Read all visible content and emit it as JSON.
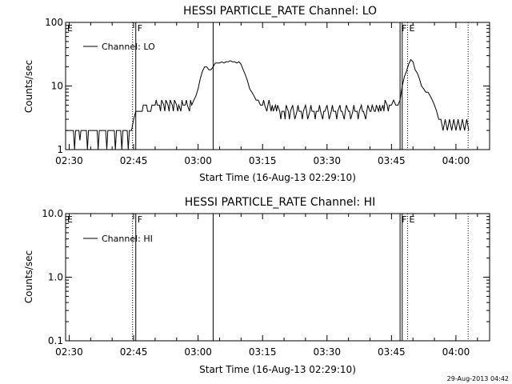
{
  "colors": {
    "background": "#ffffff",
    "foreground": "#000000"
  },
  "timestamp": "29-Aug-2013 04:42",
  "chart_data": [
    {
      "type": "line",
      "title": "HESSI PARTICLE_RATE Channel: LO",
      "xlabel": "Start Time (16-Aug-13 02:29:10)",
      "ylabel": "Counts/sec",
      "yscale": "log",
      "ylim": [
        1,
        100
      ],
      "xlim": [
        "02:29:10",
        "04:07:50"
      ],
      "x_ticks": [
        "02:30",
        "02:45",
        "03:00",
        "03:15",
        "03:30",
        "03:45",
        "04:00"
      ],
      "y_ticks": [
        "1",
        "10",
        "100"
      ],
      "legend": {
        "entries": [
          "Channel: LO"
        ],
        "position": "top-left"
      },
      "event_markers": [
        {
          "time": "02:29:10",
          "label": "E",
          "style": "dotted"
        },
        {
          "time": "02:44:45",
          "style": "dotted"
        },
        {
          "time": "02:45:30",
          "label": "F",
          "style": "solid"
        },
        {
          "time": "03:03:30",
          "style": "solid"
        },
        {
          "time": "03:47:00",
          "label": "F",
          "style": "solid"
        },
        {
          "time": "03:47:30",
          "style": "solid"
        },
        {
          "time": "03:48:45",
          "label": "E",
          "style": "dotted"
        },
        {
          "time": "04:02:50",
          "style": "dotted"
        }
      ],
      "series": [
        {
          "name": "Channel: LO",
          "points": [
            [
              "02:29:10",
              2
            ],
            [
              "02:31:00",
              2
            ],
            [
              "02:31:15",
              1
            ],
            [
              "02:31:30",
              2
            ],
            [
              "02:32:15",
              2
            ],
            [
              "02:32:30",
              1.4
            ],
            [
              "02:32:45",
              2
            ],
            [
              "02:34:00",
              2
            ],
            [
              "02:34:15",
              1
            ],
            [
              "02:34:30",
              2
            ],
            [
              "02:36:30",
              2
            ],
            [
              "02:36:45",
              1
            ],
            [
              "02:37:00",
              2
            ],
            [
              "02:38:30",
              2
            ],
            [
              "02:38:45",
              1
            ],
            [
              "02:39:00",
              2
            ],
            [
              "02:40:30",
              2
            ],
            [
              "02:40:45",
              1
            ],
            [
              "02:41:00",
              2
            ],
            [
              "02:42:00",
              2
            ],
            [
              "02:42:15",
              1
            ],
            [
              "02:42:30",
              2
            ],
            [
              "02:43:30",
              2
            ],
            [
              "02:43:45",
              1
            ],
            [
              "02:44:00",
              2
            ],
            [
              "02:44:30",
              2
            ],
            [
              "02:45:00",
              3
            ],
            [
              "02:45:30",
              4
            ],
            [
              "02:47:00",
              4
            ],
            [
              "02:47:15",
              5
            ],
            [
              "02:48:00",
              5
            ],
            [
              "02:48:15",
              4
            ],
            [
              "02:49:00",
              4
            ],
            [
              "02:49:15",
              5
            ],
            [
              "02:50:00",
              5
            ],
            [
              "02:50:15",
              6
            ],
            [
              "02:50:30",
              5
            ],
            [
              "02:51:00",
              5
            ],
            [
              "02:51:15",
              4
            ],
            [
              "02:51:30",
              6
            ],
            [
              "02:52:00",
              5
            ],
            [
              "02:52:15",
              4
            ],
            [
              "02:52:30",
              6
            ],
            [
              "02:53:00",
              5
            ],
            [
              "02:53:15",
              4
            ],
            [
              "02:53:30",
              6
            ],
            [
              "02:54:00",
              5
            ],
            [
              "02:54:15",
              4
            ],
            [
              "02:54:30",
              6
            ],
            [
              "02:55:00",
              5
            ],
            [
              "02:55:15",
              4
            ],
            [
              "02:55:30",
              5
            ],
            [
              "02:56:00",
              4
            ],
            [
              "02:56:15",
              6
            ],
            [
              "02:56:30",
              5
            ],
            [
              "02:57:00",
              5
            ],
            [
              "02:57:15",
              6
            ],
            [
              "02:57:30",
              5
            ],
            [
              "02:58:00",
              4
            ],
            [
              "02:58:15",
              6
            ],
            [
              "02:58:30",
              5
            ],
            [
              "02:59:00",
              6
            ],
            [
              "02:59:30",
              7
            ],
            [
              "03:00:00",
              9
            ],
            [
              "03:00:30",
              13
            ],
            [
              "03:01:00",
              17
            ],
            [
              "03:01:30",
              20
            ],
            [
              "03:02:00",
              20
            ],
            [
              "03:02:30",
              18
            ],
            [
              "03:03:00",
              18
            ],
            [
              "03:03:30",
              20
            ],
            [
              "03:04:00",
              23
            ],
            [
              "03:05:00",
              23
            ],
            [
              "03:05:30",
              24
            ],
            [
              "03:06:00",
              23
            ],
            [
              "03:06:30",
              24
            ],
            [
              "03:07:00",
              24
            ],
            [
              "03:07:30",
              25
            ],
            [
              "03:08:00",
              24
            ],
            [
              "03:08:30",
              24
            ],
            [
              "03:09:00",
              23
            ],
            [
              "03:09:30",
              24
            ],
            [
              "03:10:00",
              22
            ],
            [
              "03:10:30",
              18
            ],
            [
              "03:11:00",
              15
            ],
            [
              "03:11:30",
              12
            ],
            [
              "03:12:00",
              9
            ],
            [
              "03:12:30",
              8
            ],
            [
              "03:13:00",
              7
            ],
            [
              "03:13:30",
              6
            ],
            [
              "03:14:00",
              6
            ],
            [
              "03:14:30",
              5
            ],
            [
              "03:15:00",
              5
            ],
            [
              "03:15:15",
              6
            ],
            [
              "03:15:30",
              5
            ],
            [
              "03:16:00",
              4
            ],
            [
              "03:16:15",
              5
            ],
            [
              "03:16:30",
              6
            ],
            [
              "03:17:00",
              4
            ],
            [
              "03:17:15",
              5
            ],
            [
              "03:17:30",
              4
            ],
            [
              "03:18:00",
              5
            ],
            [
              "03:18:15",
              4
            ],
            [
              "03:18:30",
              5
            ],
            [
              "03:19:00",
              4
            ],
            [
              "03:19:15",
              3
            ],
            [
              "03:19:30",
              4
            ],
            [
              "03:20:00",
              4
            ],
            [
              "03:20:15",
              3
            ],
            [
              "03:20:30",
              5
            ],
            [
              "03:21:00",
              4
            ],
            [
              "03:21:15",
              3
            ],
            [
              "03:21:30",
              4
            ],
            [
              "03:22:00",
              5
            ],
            [
              "03:22:15",
              4
            ],
            [
              "03:22:30",
              3
            ],
            [
              "03:23:00",
              4
            ],
            [
              "03:23:15",
              5
            ],
            [
              "03:23:30",
              4
            ],
            [
              "03:24:00",
              4
            ],
            [
              "03:24:15",
              3
            ],
            [
              "03:24:30",
              4
            ],
            [
              "03:25:00",
              5
            ],
            [
              "03:25:15",
              4
            ],
            [
              "03:25:30",
              3
            ],
            [
              "03:26:00",
              4
            ],
            [
              "03:26:15",
              5
            ],
            [
              "03:26:30",
              4
            ],
            [
              "03:27:00",
              4
            ],
            [
              "03:27:15",
              3
            ],
            [
              "03:27:30",
              4
            ],
            [
              "03:28:00",
              4
            ],
            [
              "03:28:15",
              5
            ],
            [
              "03:28:30",
              4
            ],
            [
              "03:29:00",
              3
            ],
            [
              "03:29:15",
              4
            ],
            [
              "03:29:30",
              4
            ],
            [
              "03:30:00",
              5
            ],
            [
              "03:30:15",
              4
            ],
            [
              "03:30:30",
              3
            ],
            [
              "03:31:00",
              4
            ],
            [
              "03:31:15",
              5
            ],
            [
              "03:31:30",
              4
            ],
            [
              "03:32:00",
              4
            ],
            [
              "03:32:15",
              3
            ],
            [
              "03:32:30",
              4
            ],
            [
              "03:33:00",
              5
            ],
            [
              "03:33:15",
              4
            ],
            [
              "03:33:30",
              4
            ],
            [
              "03:34:00",
              3
            ],
            [
              "03:34:15",
              4
            ],
            [
              "03:34:30",
              5
            ],
            [
              "03:35:00",
              4
            ],
            [
              "03:35:15",
              4
            ],
            [
              "03:35:30",
              3
            ],
            [
              "03:36:00",
              4
            ],
            [
              "03:36:15",
              5
            ],
            [
              "03:36:30",
              4
            ],
            [
              "03:37:00",
              4
            ],
            [
              "03:37:15",
              3
            ],
            [
              "03:37:30",
              4
            ],
            [
              "03:38:00",
              5
            ],
            [
              "03:38:15",
              4
            ],
            [
              "03:38:30",
              4
            ],
            [
              "03:39:00",
              3
            ],
            [
              "03:39:15",
              4
            ],
            [
              "03:39:30",
              5
            ],
            [
              "03:40:00",
              4
            ],
            [
              "03:40:15",
              4
            ],
            [
              "03:40:30",
              5
            ],
            [
              "03:41:00",
              4
            ],
            [
              "03:41:15",
              4
            ],
            [
              "03:41:30",
              5
            ],
            [
              "03:42:00",
              4
            ],
            [
              "03:42:15",
              5
            ],
            [
              "03:42:30",
              4
            ],
            [
              "03:43:00",
              5
            ],
            [
              "03:43:15",
              4
            ],
            [
              "03:43:30",
              6
            ],
            [
              "03:44:00",
              5
            ],
            [
              "03:44:15",
              4
            ],
            [
              "03:44:30",
              5
            ],
            [
              "03:45:00",
              5
            ],
            [
              "03:45:30",
              6
            ],
            [
              "03:46:00",
              5
            ],
            [
              "03:46:30",
              5
            ],
            [
              "03:47:00",
              6
            ],
            [
              "03:47:30",
              10
            ],
            [
              "03:48:00",
              14
            ],
            [
              "03:48:30",
              17
            ],
            [
              "03:49:00",
              22
            ],
            [
              "03:49:30",
              26
            ],
            [
              "03:50:00",
              24
            ],
            [
              "03:50:30",
              18
            ],
            [
              "03:51:00",
              16
            ],
            [
              "03:51:30",
              13
            ],
            [
              "03:52:00",
              10
            ],
            [
              "03:52:30",
              9
            ],
            [
              "03:53:00",
              8
            ],
            [
              "03:53:30",
              8
            ],
            [
              "03:54:00",
              7
            ],
            [
              "03:54:30",
              6
            ],
            [
              "03:55:00",
              5
            ],
            [
              "03:55:30",
              4
            ],
            [
              "03:56:00",
              3
            ],
            [
              "03:56:30",
              3
            ],
            [
              "03:57:00",
              2
            ],
            [
              "03:57:30",
              3
            ],
            [
              "03:58:00",
              2
            ],
            [
              "03:58:30",
              3
            ],
            [
              "03:59:00",
              2
            ],
            [
              "03:59:30",
              3
            ],
            [
              "04:00:00",
              2
            ],
            [
              "04:00:30",
              3
            ],
            [
              "04:01:00",
              2
            ],
            [
              "04:01:30",
              3
            ],
            [
              "04:02:00",
              2
            ],
            [
              "04:02:30",
              3
            ],
            [
              "04:03:00",
              2
            ]
          ]
        }
      ]
    },
    {
      "type": "line",
      "title": "HESSI PARTICLE_RATE Channel: HI",
      "xlabel": "Start Time (16-Aug-13 02:29:10)",
      "ylabel": "Counts/sec",
      "yscale": "log",
      "ylim": [
        0.1,
        10
      ],
      "xlim": [
        "02:29:10",
        "04:07:50"
      ],
      "x_ticks": [
        "02:30",
        "02:45",
        "03:00",
        "03:15",
        "03:30",
        "03:45",
        "04:00"
      ],
      "y_ticks": [
        "0.1",
        "1.0",
        "10.0"
      ],
      "legend": {
        "entries": [
          "Channel: HI"
        ],
        "position": "top-left"
      },
      "event_markers": [
        {
          "time": "02:29:10",
          "label": "E",
          "style": "dotted"
        },
        {
          "time": "02:44:45",
          "style": "dotted"
        },
        {
          "time": "02:45:30",
          "label": "F",
          "style": "solid"
        },
        {
          "time": "03:03:30",
          "style": "solid"
        },
        {
          "time": "03:47:00",
          "label": "F",
          "style": "solid"
        },
        {
          "time": "03:47:30",
          "style": "solid"
        },
        {
          "time": "03:48:45",
          "label": "E",
          "style": "dotted"
        },
        {
          "time": "04:02:50",
          "style": "dotted"
        }
      ],
      "series": [
        {
          "name": "Channel: HI",
          "points": []
        }
      ]
    }
  ]
}
